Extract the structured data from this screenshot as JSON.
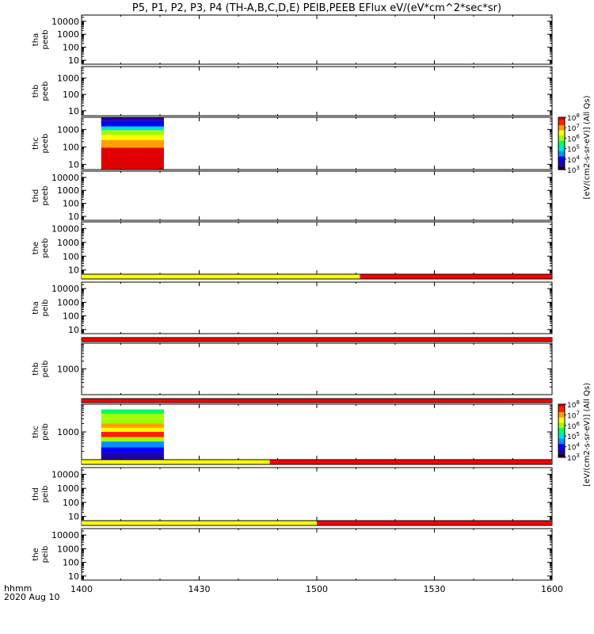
{
  "title": "P5, P1, P2, P3, P4 (TH-A,B,C,D,E) PEIB,PEEB EFlux eV/(eV*cm^2*sec*sr)",
  "xaxis": {
    "title_line1": "hhmm",
    "title_line2": "2020 Aug 10",
    "ticks": [
      "1400",
      "1430",
      "1500",
      "1530",
      "1600"
    ]
  },
  "colorbar": {
    "label": "[eV/(cm2-s-sr-eV)] (All Qs)",
    "ticks": [
      3,
      4,
      5,
      6,
      7,
      8
    ],
    "colors": [
      "#000000",
      "#2200aa",
      "#0000ff",
      "#0090ff",
      "#00e0e0",
      "#00ff60",
      "#a0ff00",
      "#ffff00",
      "#ffa000",
      "#ff2000",
      "#e00000"
    ]
  },
  "chart_data": [
    {
      "type": "heatmap",
      "probe": "tha",
      "product": "peeb",
      "ylabel": [
        "tha",
        "peeb"
      ],
      "ylim": [
        5,
        30000
      ],
      "yscale": "log",
      "yticks": [
        "10",
        "100",
        "1000",
        "10000"
      ],
      "data_present": false
    },
    {
      "type": "heatmap",
      "probe": "thb",
      "product": "peeb",
      "ylabel": [
        "thb",
        "peeb"
      ],
      "ylim": [
        5,
        5000
      ],
      "yscale": "log",
      "yticks": [
        "10",
        "100",
        "1000"
      ],
      "data_present": false
    },
    {
      "type": "heatmap",
      "probe": "thc",
      "product": "peeb",
      "ylabel": [
        "thc",
        "peeb"
      ],
      "ylim": [
        5,
        5000
      ],
      "yscale": "log",
      "yticks": [
        "10",
        "100",
        "1000"
      ],
      "data_present": true,
      "time_range": [
        "1405",
        "1421"
      ],
      "rows": [
        {
          "energy": [
            3000,
            5000
          ],
          "level": 3.5
        },
        {
          "energy": [
            1500,
            3000
          ],
          "level": 4.2
        },
        {
          "energy": [
            900,
            1500
          ],
          "level": 5.0
        },
        {
          "energy": [
            500,
            900
          ],
          "level": 5.8
        },
        {
          "energy": [
            250,
            500
          ],
          "level": 6.5
        },
        {
          "energy": [
            90,
            250
          ],
          "level": 7.2
        },
        {
          "energy": [
            5,
            90
          ],
          "level": 7.8
        }
      ]
    },
    {
      "type": "heatmap",
      "probe": "thd",
      "product": "peeb",
      "ylabel": [
        "thd",
        "peeb"
      ],
      "ylim": [
        5,
        30000
      ],
      "yscale": "log",
      "yticks": [
        "10",
        "100",
        "1000",
        "10000"
      ],
      "data_present": false
    },
    {
      "type": "heatmap",
      "probe": "the",
      "product": "peeb",
      "ylabel": [
        "the",
        "peeb"
      ],
      "ylim": [
        5,
        30000
      ],
      "yscale": "log",
      "yticks": [
        "10",
        "100",
        "1000",
        "10000"
      ],
      "data_present": false,
      "flag_bar": [
        {
          "start": "1400",
          "end": "1511",
          "color": "#ffff00"
        },
        {
          "start": "1511",
          "end": "1600",
          "color": "#ff0000"
        }
      ]
    },
    {
      "type": "heatmap",
      "probe": "tha",
      "product": "peib",
      "ylabel": [
        "tha",
        "peib"
      ],
      "ylim": [
        5,
        30000
      ],
      "yscale": "log",
      "yticks": [
        "10",
        "100",
        "1000",
        "10000"
      ],
      "data_present": false,
      "flag_bar": [
        {
          "start": "1400",
          "end": "1600",
          "color": "#ff0000"
        }
      ]
    },
    {
      "type": "heatmap",
      "probe": "thb",
      "product": "peib",
      "ylabel": [
        "thb",
        "peib"
      ],
      "ylim": [
        100,
        10000
      ],
      "yscale": "log",
      "yticks": [
        "1000"
      ],
      "data_present": false,
      "flag_bar": [
        {
          "start": "1400",
          "end": "1600",
          "color": "#ff0000"
        }
      ]
    },
    {
      "type": "heatmap",
      "probe": "thc",
      "product": "peib",
      "ylabel": [
        "thc",
        "peib"
      ],
      "ylim": [
        100,
        10000
      ],
      "yscale": "log",
      "yticks": [
        "1000"
      ],
      "data_present": true,
      "time_range": [
        "1405",
        "1421"
      ],
      "rows": [
        {
          "energy": [
            4500,
            6500
          ],
          "level": 5.4
        },
        {
          "energy": [
            3000,
            4500
          ],
          "level": 5.8
        },
        {
          "energy": [
            2000,
            3000
          ],
          "level": 6.2
        },
        {
          "energy": [
            1400,
            2000
          ],
          "level": 7.0
        },
        {
          "energy": [
            1000,
            1400
          ],
          "level": 6.5
        },
        {
          "energy": [
            650,
            1000
          ],
          "level": 7.6
        },
        {
          "energy": [
            450,
            650
          ],
          "level": 5.8
        },
        {
          "energy": [
            280,
            450
          ],
          "level": 4.7
        },
        {
          "energy": [
            180,
            280
          ],
          "level": 3.8
        },
        {
          "energy": [
            100,
            180
          ],
          "level": 3.3
        }
      ],
      "flag_bar": [
        {
          "start": "1400",
          "end": "1448",
          "color": "#ffff00"
        },
        {
          "start": "1448",
          "end": "1600",
          "color": "#ff0000"
        }
      ]
    },
    {
      "type": "heatmap",
      "probe": "thd",
      "product": "peib",
      "ylabel": [
        "thd",
        "peib"
      ],
      "ylim": [
        5,
        30000
      ],
      "yscale": "log",
      "yticks": [
        "10",
        "100",
        "1000",
        "10000"
      ],
      "data_present": false,
      "flag_bar": [
        {
          "start": "1400",
          "end": "1500",
          "color": "#ffff00"
        },
        {
          "start": "1500",
          "end": "1600",
          "color": "#ff0000"
        }
      ]
    },
    {
      "type": "heatmap",
      "probe": "the",
      "product": "peib",
      "ylabel": [
        "the",
        "peib"
      ],
      "ylim": [
        5,
        30000
      ],
      "yscale": "log",
      "yticks": [
        "10",
        "100",
        "1000",
        "10000"
      ],
      "data_present": false
    }
  ]
}
